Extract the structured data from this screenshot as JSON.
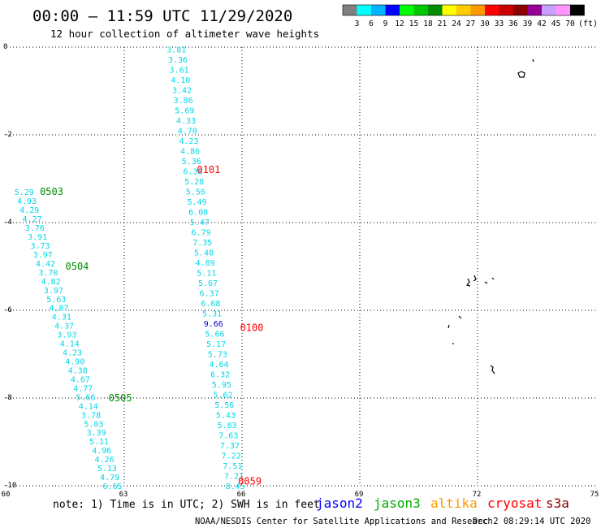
{
  "chart_data": {
    "type": "scatter",
    "title": "00:00 – 11:59 UTC 11/29/2020",
    "subtitle": "12 hour collection of altimeter wave heights",
    "xlim": [
      60,
      75
    ],
    "ylim": [
      -10,
      0
    ],
    "x_ticks": [
      "60",
      "63",
      "66",
      "69",
      "72",
      "75"
    ],
    "y_ticks": [
      "0",
      "-2",
      "-4",
      "-6",
      "-8",
      "-10"
    ],
    "grid": true,
    "colorbar": {
      "unit": "(ft)",
      "labels": [
        "3",
        "6",
        "9",
        "12",
        "15",
        "18",
        "21",
        "24",
        "27",
        "30",
        "33",
        "36",
        "39",
        "42",
        "45",
        "70"
      ],
      "colors": [
        "#7f7f7f",
        "#00ffff",
        "#00b4ff",
        "#0000ff",
        "#00ff00",
        "#00c800",
        "#008c00",
        "#ffff00",
        "#ffcc00",
        "#ff9900",
        "#ff0000",
        "#c80000",
        "#8c0000",
        "#960096",
        "#c8a0ff",
        "#ff96ff",
        "#000000"
      ]
    },
    "tracks": [
      {
        "start": [
          64.08,
          -0.05
        ],
        "end": [
          65.58,
          -10.0
        ],
        "values": [
          "3.81",
          "3.36",
          "3.61",
          "4.10",
          "3.42",
          "3.86",
          "5.69",
          "4.33",
          "4.70",
          "4.23",
          "4.86",
          "5.36",
          "6.38",
          "5.28",
          "5.56",
          "5.49",
          "6.08",
          "5.47",
          "6.79",
          "7.35",
          "5.48",
          "4.89",
          "5.11",
          "5.67",
          "6.37",
          "6.68",
          "5.31",
          "9.66",
          "5.66",
          "5.17",
          "5.73",
          "4.64",
          "6.32",
          "5.95",
          "5.62",
          "5.56",
          "5.43",
          "5.83",
          "7.63",
          "7.37",
          "7.22",
          "7.51",
          "7.21",
          "8.45"
        ],
        "dark_index": 27
      },
      {
        "start": [
          60.2,
          -3.3
        ],
        "end": [
          62.45,
          -10.0
        ],
        "values": [
          "5.29",
          "4.93",
          "4.29",
          "4.27",
          "3.76",
          "3.91",
          "3.73",
          "3.97",
          "4.42",
          "3.70",
          "4.82",
          "3.97",
          "5.63",
          "4.87",
          "4.31",
          "4.37",
          "3.93",
          "4.14",
          "4.23",
          "4.90",
          "4.38",
          "4.67",
          "4.77",
          "5.66",
          "4.14",
          "3.78",
          "5.03",
          "3.39",
          "5.11",
          "4.96",
          "4.26",
          "5.13",
          "4.79",
          "6.65"
        ],
        "dark_index": -1
      }
    ],
    "time_labels": [
      {
        "text": "0101",
        "x": 64.85,
        "y": -2.8,
        "color": "#ff0000"
      },
      {
        "text": "0100",
        "x": 65.95,
        "y": -6.4,
        "color": "#ff0000"
      },
      {
        "text": "0059",
        "x": 65.9,
        "y": -9.9,
        "color": "#ff0000"
      },
      {
        "text": "0503",
        "x": 60.85,
        "y": -3.3,
        "color": "#008c00"
      },
      {
        "text": "0504",
        "x": 61.5,
        "y": -5.0,
        "color": "#008c00"
      },
      {
        "text": "0505",
        "x": 62.6,
        "y": -8.0,
        "color": "#008c00"
      }
    ],
    "satellites": [
      {
        "name": "jason2",
        "color": "#0000ff"
      },
      {
        "name": "jason3",
        "color": "#00aa00"
      },
      {
        "name": "altika",
        "color": "#ff9900"
      },
      {
        "name": "cryosat",
        "color": "#ff0000"
      },
      {
        "name": "s3a",
        "color": "#8b0000"
      }
    ]
  },
  "footer": {
    "note": "note: 1) Time is in UTC; 2) SWH is in feet",
    "credit": "NOAA/NESDIS Center for Satellite Applications and Research",
    "generated": "Dec  2 08:29:14 UTC 2020"
  }
}
